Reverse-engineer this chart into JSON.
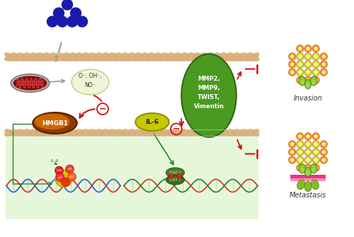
{
  "bg_color": "#ffffff",
  "ozone_color": "#1a1aaa",
  "o3_label": "O₃",
  "ros_label": "O⁻, OH⁻,\nNO⁻",
  "ros_bg": "#f0f5d8",
  "hmgb1_outer": "#8b3a00",
  "hmgb1_inner": "#cc6600",
  "hmgb1_label": "HMGB1",
  "il6_color": "#cccc00",
  "il6_label": "IL-6",
  "mmp_color": "#4a9a20",
  "mmp_label": "MMP2,\nMMP9,\nTWIST,\nVimentin",
  "mem_salmon": "#e8a090",
  "mem_dot": "#d4b870",
  "mem_gray": "#c8c8c8",
  "intra_bg": "#e0f5d0",
  "inhibit_color": "#cc1111",
  "arrow_gray": "#999999",
  "arrow_green": "#228822",
  "cell_orange": "#f07030",
  "cell_yellow": "#d8e040",
  "cell_green": "#88cc30",
  "invasion_label": "Invasion",
  "metastasis_label": "Metastasis"
}
